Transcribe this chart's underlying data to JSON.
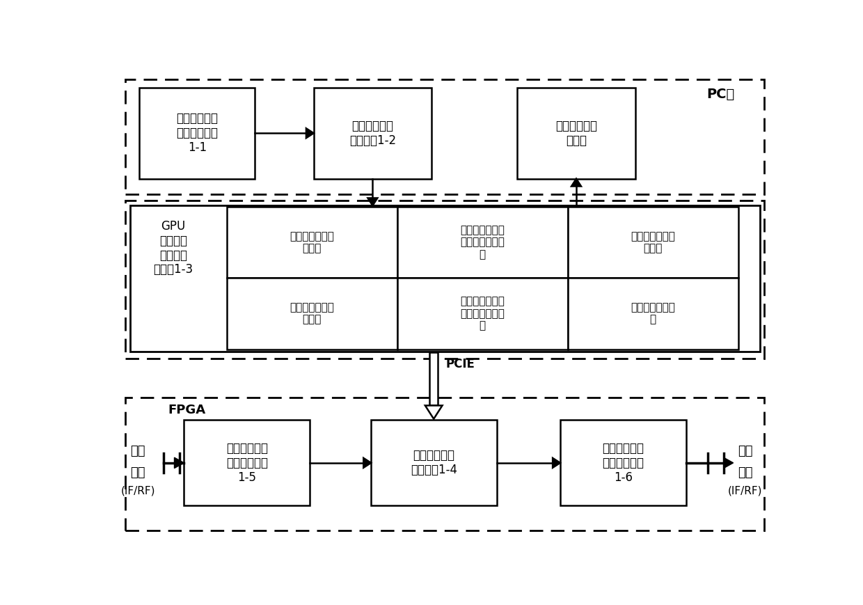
{
  "bg_color": "#ffffff",
  "font_color": "#000000",
  "pc_label": "PC机",
  "gpu_label": "GPU\n网络信道\n建模及产\n生单元1-3",
  "fpga_label": "FPGA",
  "pcie_label": "PCIE",
  "box1_text": "网络节点动态\n拓扑输入单元\n1-1",
  "box2_text": "网络信道参数\n估计单元1-2",
  "box3_text": "信道状态图形\n化显示",
  "box4a_text": "地面发射节点信\n号模型",
  "box4b_text": "无人机中继转发\n节点接收信号模\n型",
  "box4c_text": "地面节点干扰信\n号模型",
  "box4d_text": "地面接收节点信\n号模型",
  "box4e_text": "无人机中继接收\n节点接收信号模\n型",
  "box4f_text": "地面节点噪声模\n型",
  "box5_text": "网络节点发射\n信号输入单元\n1-5",
  "box6_text": "网络信道组合\n叠加单元1-4",
  "box7_text": "网络节点接收\n信号输出单元\n1-6",
  "signal_in_line1": "信号",
  "signal_in_line2": "输入",
  "signal_in_sub": "(IF/RF)",
  "signal_out_line1": "信号",
  "signal_out_line2": "输出",
  "signal_out_sub": "(IF/RF)"
}
